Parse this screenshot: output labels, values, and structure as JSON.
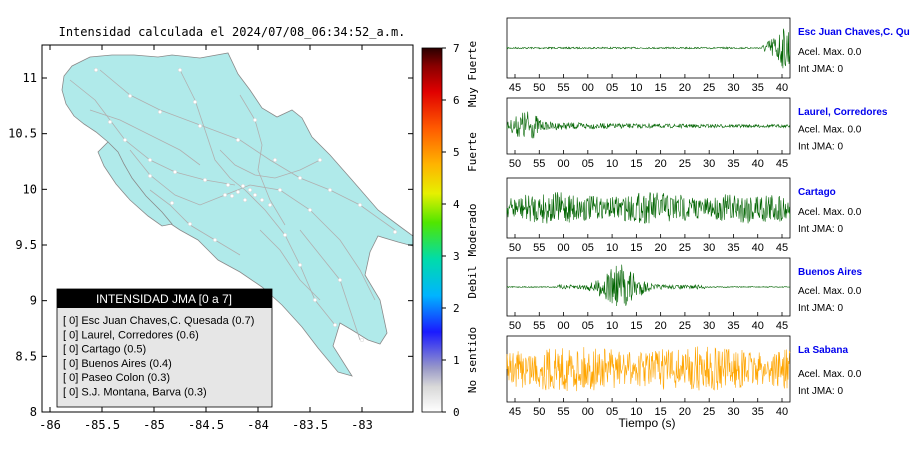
{
  "map": {
    "title": "Intensidad calculada el 2024/07/08_06:34:52_a.m.",
    "x_ticks": [
      "-86",
      "-85.5",
      "-85",
      "-84.5",
      "-84",
      "-83.5",
      "-83"
    ],
    "y_ticks": [
      "11",
      "10.5",
      "10",
      "9.5",
      "9",
      "8.5",
      "8"
    ],
    "land_color": "#b0eaea",
    "road_color": "#b0b0b0"
  },
  "legend": {
    "header": "INTENSIDAD JMA [0 a 7]",
    "items": [
      "[ 0]  Esc Juan Chaves,C. Quesada (0.7)",
      "[ 0]  Laurel, Corredores (0.6)",
      "[ 0]  Cartago (0.5)",
      "[ 0]  Buenos Aires (0.4)",
      "[ 0]  Paseo Colon (0.3)",
      "[ 0]  S.J. Montana, Barva (0.3)"
    ]
  },
  "colorbar": {
    "ticks": [
      "0",
      "1",
      "2",
      "3",
      "4",
      "5",
      "6",
      "7"
    ],
    "categories": [
      "No sentido",
      "Debil",
      "Moderado",
      "Fuerte",
      "Muy Fuerte"
    ]
  },
  "stations": [
    {
      "name": "Esc Juan Chaves,C. Qu",
      "line1": "Acel. Max. 0.0",
      "line2": "Int JMA: 0",
      "color": "#006400",
      "ticks": [
        "45",
        "50",
        "55",
        "00",
        "05",
        "10",
        "15",
        "20",
        "25",
        "30",
        "35",
        "40"
      ]
    },
    {
      "name": "Laurel, Corredores",
      "line1": "Acel. Max. 0.0",
      "line2": "Int JMA: 0",
      "color": "#006400",
      "ticks": [
        "50",
        "55",
        "00",
        "05",
        "10",
        "15",
        "20",
        "25",
        "30",
        "35",
        "40",
        "45"
      ]
    },
    {
      "name": "Cartago",
      "line1": "Acel. Max. 0.0",
      "line2": "Int JMA: 0",
      "color": "#006400",
      "ticks": [
        "50",
        "55",
        "00",
        "05",
        "10",
        "15",
        "20",
        "25",
        "30",
        "35",
        "40",
        "45"
      ]
    },
    {
      "name": "Buenos Aires",
      "line1": "Acel. Max. 0.0",
      "line2": "Int JMA: 0",
      "color": "#006400",
      "ticks": [
        "50",
        "55",
        "00",
        "05",
        "10",
        "15",
        "20",
        "25",
        "30",
        "35",
        "40",
        "45"
      ]
    },
    {
      "name": "La Sabana",
      "line1": "Acel. Max. 0.0",
      "line2": "Int JMA: 0",
      "color": "#ffa500",
      "ticks": [
        "45",
        "50",
        "55",
        "00",
        "05",
        "10",
        "15",
        "20",
        "25",
        "30",
        "35",
        "40"
      ]
    }
  ],
  "waveform_xlabel": "Tiempo (s)",
  "chart_data": [
    {
      "type": "scatter",
      "title": "Intensidad calculada el 2024/07/08_06:34:52_a.m.",
      "xlim": [
        -86,
        -82.6
      ],
      "ylim": [
        8,
        11.3
      ],
      "x_ticks": [
        -86,
        -85.5,
        -85,
        -84.5,
        -84,
        -83.5,
        -83
      ],
      "y_ticks": [
        8,
        8.5,
        9,
        9.5,
        10,
        10.5,
        11
      ]
    },
    {
      "type": "line",
      "series": [
        {
          "name": "Esc Juan Chaves,C. Qu",
          "acel_max": 0.0,
          "int_jma": 0
        },
        {
          "name": "Laurel, Corredores",
          "acel_max": 0.0,
          "int_jma": 0
        },
        {
          "name": "Cartago",
          "acel_max": 0.0,
          "int_jma": 0
        },
        {
          "name": "Buenos Aires",
          "acel_max": 0.0,
          "int_jma": 0
        },
        {
          "name": "La Sabana",
          "acel_max": 0.0,
          "int_jma": 0
        }
      ],
      "xlabel": "Tiempo (s)"
    }
  ]
}
